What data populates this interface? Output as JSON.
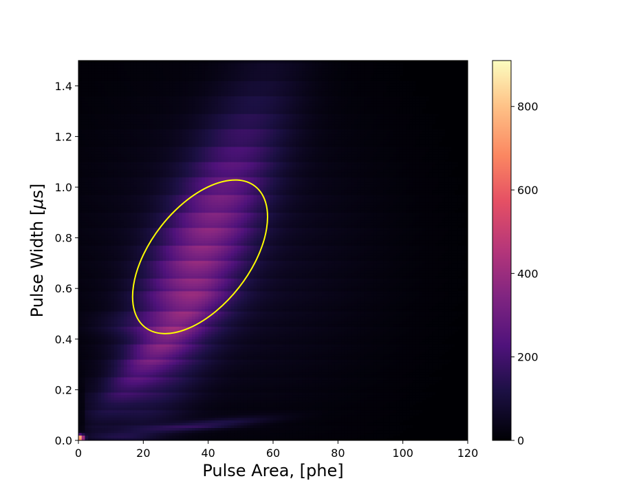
{
  "chart_data": {
    "type": "heatmap",
    "xlabel": "Pulse Area, [phe]",
    "ylabel_prefix": "Pulse Width [",
    "ylabel_mu": "μ",
    "ylabel_suffix": "s]",
    "xlim": [
      0,
      120
    ],
    "ylim": [
      0,
      1.5
    ],
    "x_ticks": [
      0,
      20,
      40,
      60,
      80,
      100,
      120
    ],
    "y_ticks": [
      0.0,
      0.2,
      0.4,
      0.6,
      0.8,
      1.0,
      1.2,
      1.4
    ],
    "x_tick_labels": [
      "0",
      "20",
      "40",
      "60",
      "80",
      "100",
      "120"
    ],
    "y_tick_labels": [
      "0.0",
      "0.2",
      "0.4",
      "0.6",
      "0.8",
      "1.0",
      "1.2",
      "1.4"
    ],
    "colormap": "magma",
    "colorbar": {
      "range": [
        0,
        910
      ],
      "ticks": [
        0,
        200,
        400,
        600,
        800
      ],
      "tick_labels": [
        "0",
        "200",
        "400",
        "600",
        "800"
      ]
    },
    "bins": {
      "x_count": 120,
      "y_count": 150
    },
    "density_components": [
      {
        "name": "main cluster",
        "center": [
          37,
          0.72
        ],
        "peak": 300
      },
      {
        "name": "diagonal band",
        "from": [
          5,
          0.12
        ],
        "to": [
          40,
          0.55
        ],
        "peak": 120
      },
      {
        "name": "low-width band",
        "from": [
          8,
          0.02
        ],
        "to": [
          55,
          0.07
        ],
        "peak": 150
      },
      {
        "name": "origin spike",
        "center": [
          1,
          0.01
        ],
        "peak": 900
      }
    ],
    "annotation_ellipse": {
      "center": [
        37.5,
        0.725
      ],
      "color": "#ffff00",
      "bounds_x": [
        15.5,
        59.5
      ],
      "bounds_y": [
        0.41,
        1.04
      ]
    }
  }
}
